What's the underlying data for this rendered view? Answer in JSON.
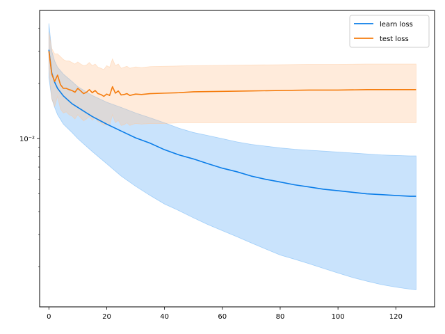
{
  "chart_data": {
    "type": "line",
    "title": "",
    "xlabel": "",
    "ylabel": "",
    "yscale": "log",
    "xlim": [
      -3.2,
      133.4
    ],
    "ylim": [
      0.00121,
      0.05
    ],
    "grid": false,
    "legend_position": "top-right",
    "x_ticks": [
      0,
      20,
      40,
      60,
      80,
      100,
      120
    ],
    "x_tick_labels": [
      "0",
      "20",
      "40",
      "60",
      "80",
      "100",
      "120"
    ],
    "y_major_ticks": [
      0.01
    ],
    "y_major_tick_labels": [
      "10⁻²"
    ],
    "y_minor_ticks": [
      0.002,
      0.003,
      0.004,
      0.005,
      0.006,
      0.007,
      0.008,
      0.009,
      0.02,
      0.03,
      0.04
    ],
    "series": [
      {
        "name": "learn loss",
        "color": "#0a7de8",
        "band_color": "#64aff5",
        "x": [
          0,
          1,
          2,
          3,
          5,
          8,
          10,
          15,
          20,
          25,
          30,
          35,
          40,
          45,
          50,
          55,
          60,
          65,
          70,
          75,
          80,
          85,
          90,
          95,
          100,
          105,
          110,
          115,
          120,
          125,
          127
        ],
        "mean": [
          0.0305,
          0.0228,
          0.0203,
          0.0188,
          0.0171,
          0.0155,
          0.0148,
          0.0132,
          0.012,
          0.011,
          0.0101,
          0.00945,
          0.0087,
          0.00815,
          0.00775,
          0.0073,
          0.0069,
          0.0066,
          0.00625,
          0.006,
          0.0058,
          0.0056,
          0.00545,
          0.0053,
          0.0052,
          0.0051,
          0.005,
          0.00495,
          0.0049,
          0.00485,
          0.00485
        ],
        "upper": [
          0.0425,
          0.03,
          0.0265,
          0.0245,
          0.0225,
          0.0205,
          0.0192,
          0.0172,
          0.0158,
          0.0148,
          0.0138,
          0.013,
          0.0122,
          0.0114,
          0.0108,
          0.0104,
          0.01,
          0.0096,
          0.0093,
          0.0091,
          0.0089,
          0.00875,
          0.00865,
          0.00855,
          0.00845,
          0.00835,
          0.00825,
          0.00815,
          0.0081,
          0.00805,
          0.00805
        ],
        "lower": [
          0.0215,
          0.0165,
          0.0148,
          0.0135,
          0.012,
          0.0108,
          0.01,
          0.0085,
          0.0073,
          0.00625,
          0.0055,
          0.0049,
          0.0044,
          0.00405,
          0.0037,
          0.0034,
          0.00315,
          0.00292,
          0.0027,
          0.0025,
          0.00232,
          0.0022,
          0.00208,
          0.00196,
          0.00185,
          0.00175,
          0.00167,
          0.0016,
          0.00155,
          0.00151,
          0.0015
        ]
      },
      {
        "name": "test loss",
        "color": "#f57c0d",
        "band_color": "#ffc799",
        "x": [
          0,
          1,
          2,
          3,
          4,
          5,
          6,
          7,
          8,
          9,
          10,
          11,
          12,
          13,
          14,
          15,
          16,
          17,
          18,
          19,
          20,
          21,
          22,
          23,
          24,
          25,
          26,
          27,
          28,
          30,
          32,
          35,
          40,
          45,
          50,
          60,
          70,
          80,
          90,
          100,
          110,
          120,
          127
        ],
        "mean": [
          0.03,
          0.0225,
          0.0205,
          0.0222,
          0.0197,
          0.0188,
          0.0188,
          0.0185,
          0.0183,
          0.0179,
          0.0188,
          0.0182,
          0.0176,
          0.0179,
          0.0185,
          0.0178,
          0.0183,
          0.0176,
          0.0174,
          0.017,
          0.0175,
          0.0172,
          0.0192,
          0.0177,
          0.0182,
          0.0173,
          0.0174,
          0.0176,
          0.0172,
          0.0175,
          0.0174,
          0.0176,
          0.0177,
          0.0178,
          0.018,
          0.0181,
          0.0182,
          0.0183,
          0.0184,
          0.0184,
          0.0185,
          0.0185,
          0.0185
        ],
        "upper": [
          0.038,
          0.031,
          0.029,
          0.029,
          0.028,
          0.027,
          0.0265,
          0.0265,
          0.026,
          0.0255,
          0.0262,
          0.0255,
          0.025,
          0.0252,
          0.026,
          0.025,
          0.0255,
          0.0245,
          0.0242,
          0.0238,
          0.025,
          0.0245,
          0.0272,
          0.025,
          0.0255,
          0.0242,
          0.0245,
          0.0248,
          0.0242,
          0.0246,
          0.0244,
          0.0247,
          0.0248,
          0.0249,
          0.025,
          0.0251,
          0.0252,
          0.0253,
          0.0254,
          0.0254,
          0.0255,
          0.0255,
          0.0255
        ],
        "lower": [
          0.024,
          0.0165,
          0.015,
          0.017,
          0.0145,
          0.0138,
          0.014,
          0.0135,
          0.0133,
          0.0128,
          0.0135,
          0.013,
          0.0125,
          0.0128,
          0.0132,
          0.0126,
          0.013,
          0.0124,
          0.0122,
          0.0118,
          0.012,
          0.0118,
          0.0135,
          0.0122,
          0.0126,
          0.0118,
          0.0119,
          0.0122,
          0.0118,
          0.0121,
          0.012,
          0.0121,
          0.0121,
          0.0122,
          0.0122,
          0.0122,
          0.0122,
          0.0122,
          0.0122,
          0.0122,
          0.0122,
          0.0122,
          0.0122
        ]
      }
    ]
  }
}
